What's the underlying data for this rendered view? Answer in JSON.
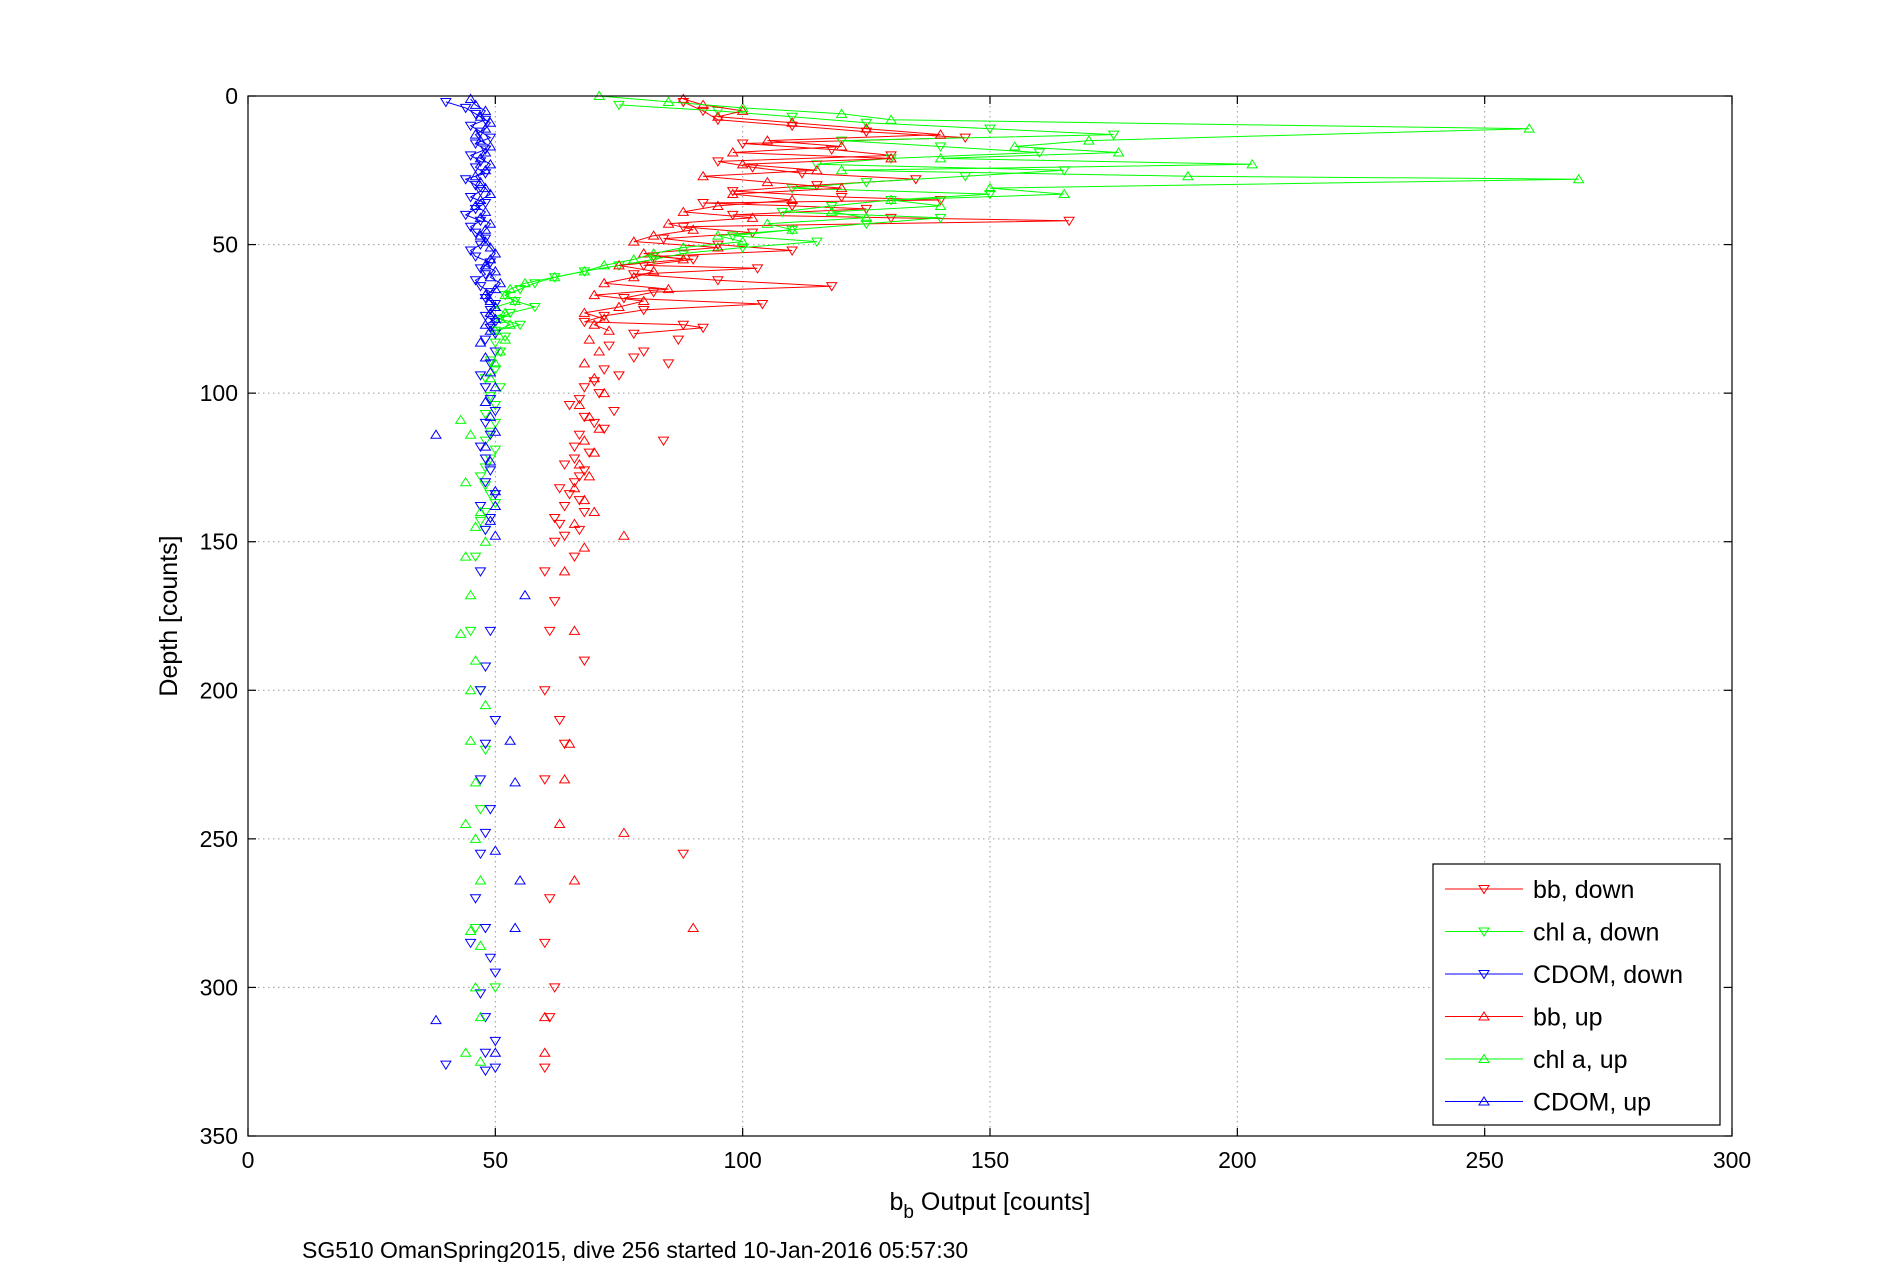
{
  "chart_data": {
    "type": "scatter",
    "title": "",
    "xlabel": "b",
    "xlabel_sub": "b",
    "xlabel_rest": " Output [counts]",
    "ylabel": "Depth [counts]",
    "caption": "SG510 OmanSpring2015, dive 256 started 10-Jan-2016 05:57:30",
    "xlim": [
      0,
      300
    ],
    "ylim": [
      0,
      350
    ],
    "y_reversed": true,
    "grid": true,
    "legend_position": "bottom-right",
    "xticks": [
      "0",
      "50",
      "100",
      "150",
      "200",
      "250",
      "300"
    ],
    "yticks": [
      "0",
      "50",
      "100",
      "150",
      "200",
      "250",
      "300",
      "350"
    ],
    "colors": {
      "red": "#ff0000",
      "green": "#00ff00",
      "blue": "#0000ff"
    },
    "series": [
      {
        "name": "bb, down",
        "color": "#ff0000",
        "marker": "triangle-down",
        "x": [
          88,
          92,
          95,
          110,
          125,
          145,
          100,
          118,
          130,
          95,
          102,
          112,
          135,
          115,
          98,
          120,
          140,
          92,
          110,
          125,
          98,
          130,
          166,
          88,
          102,
          84,
          95,
          110,
          82,
          90,
          80,
          103,
          78,
          95,
          118,
          82,
          76,
          104,
          80,
          72,
          68,
          88,
          92,
          78,
          87,
          73,
          80,
          78,
          85,
          72,
          75,
          70,
          68,
          71,
          67,
          65,
          74,
          68,
          70,
          72,
          67,
          84,
          66,
          69,
          66,
          64,
          68,
          67,
          66,
          63,
          65,
          67,
          64,
          68,
          62,
          63,
          67,
          64,
          62,
          66,
          60,
          62,
          61,
          68,
          60,
          63,
          64,
          60,
          88,
          61,
          60,
          62,
          61,
          60
        ],
        "y": [
          2,
          5,
          8,
          10,
          12,
          14,
          16,
          18,
          20,
          22,
          24,
          26,
          28,
          30,
          32,
          34,
          35,
          36,
          37,
          38,
          40,
          41,
          42,
          44,
          46,
          48,
          50,
          52,
          54,
          55,
          57,
          58,
          60,
          62,
          64,
          66,
          68,
          70,
          72,
          74,
          76,
          77,
          78,
          80,
          82,
          84,
          86,
          88,
          90,
          92,
          94,
          96,
          98,
          100,
          102,
          104,
          106,
          108,
          110,
          112,
          114,
          116,
          118,
          120,
          122,
          124,
          126,
          128,
          130,
          132,
          134,
          136,
          138,
          140,
          142,
          144,
          146,
          148,
          150,
          155,
          160,
          170,
          180,
          190,
          200,
          210,
          218,
          230,
          255,
          270,
          285,
          300,
          310,
          327
        ]
      },
      {
        "name": "chl a, down",
        "color": "#00ff00",
        "marker": "triangle-down",
        "x": [
          75,
          95,
          110,
          125,
          150,
          175,
          120,
          140,
          160,
          130,
          115,
          165,
          145,
          125,
          110,
          150,
          130,
          118,
          108,
          140,
          125,
          110,
          98,
          115,
          100,
          88,
          82,
          75,
          68,
          62,
          58,
          55,
          52,
          54,
          58,
          53,
          51,
          55,
          50,
          52,
          50,
          51,
          49,
          50,
          48,
          51,
          49,
          50,
          48,
          50,
          49,
          48,
          50,
          49,
          48,
          47,
          48,
          49,
          50,
          48,
          47,
          48,
          46,
          45,
          47,
          48,
          47,
          46,
          50
        ],
        "y": [
          3,
          5,
          7,
          9,
          11,
          13,
          15,
          17,
          19,
          21,
          23,
          25,
          27,
          29,
          31,
          33,
          35,
          37,
          39,
          41,
          43,
          45,
          47,
          49,
          51,
          53,
          55,
          57,
          59,
          61,
          63,
          65,
          67,
          69,
          71,
          73,
          75,
          77,
          79,
          81,
          83,
          86,
          89,
          92,
          95,
          98,
          101,
          104,
          107,
          110,
          113,
          116,
          119,
          122,
          125,
          128,
          131,
          134,
          137,
          140,
          143,
          146,
          155,
          180,
          200,
          220,
          240,
          280,
          300
        ]
      },
      {
        "name": "CDOM, down",
        "color": "#0000ff",
        "marker": "triangle-down",
        "x": [
          40,
          44,
          46,
          48,
          45,
          47,
          49,
          46,
          48,
          45,
          47,
          46,
          48,
          44,
          46,
          47,
          45,
          48,
          46,
          44,
          47,
          45,
          46,
          48,
          47,
          45,
          46,
          49,
          47,
          48,
          46,
          47,
          49,
          48,
          50,
          49,
          48,
          50,
          49,
          50,
          48,
          50,
          49,
          47,
          48,
          49,
          50,
          48,
          49,
          47,
          48,
          49,
          48,
          50,
          47,
          49,
          48,
          47,
          49,
          48,
          47,
          50,
          48,
          47,
          49,
          48,
          47,
          46,
          48,
          45,
          49,
          50,
          47,
          48,
          50,
          48,
          40,
          50,
          48
        ],
        "y": [
          2,
          4,
          6,
          8,
          10,
          12,
          14,
          16,
          18,
          20,
          22,
          24,
          26,
          28,
          30,
          32,
          34,
          36,
          38,
          40,
          42,
          44,
          46,
          48,
          50,
          52,
          54,
          56,
          58,
          60,
          62,
          64,
          66,
          68,
          70,
          72,
          74,
          76,
          78,
          80,
          82,
          86,
          90,
          94,
          98,
          102,
          106,
          110,
          114,
          118,
          122,
          126,
          130,
          134,
          138,
          142,
          146,
          160,
          180,
          192,
          200,
          210,
          218,
          230,
          240,
          248,
          255,
          270,
          280,
          285,
          290,
          295,
          302,
          310,
          318,
          322,
          326,
          327,
          328
        ]
      },
      {
        "name": "bb, up",
        "color": "#ff0000",
        "marker": "triangle-up",
        "x": [
          88,
          92,
          100,
          95,
          110,
          125,
          140,
          105,
          120,
          98,
          130,
          100,
          115,
          92,
          105,
          120,
          98,
          110,
          95,
          88,
          102,
          85,
          90,
          82,
          78,
          95,
          80,
          88,
          75,
          82,
          78,
          72,
          85,
          70,
          80,
          75,
          68,
          72,
          70,
          73,
          69,
          71,
          68,
          70,
          72,
          67,
          69,
          71,
          68,
          70,
          67,
          69,
          66,
          68,
          70,
          66,
          76,
          68,
          64,
          66,
          65,
          64,
          63,
          76,
          66,
          90,
          60,
          60
        ],
        "y": [
          1,
          3,
          5,
          7,
          9,
          11,
          13,
          15,
          17,
          19,
          21,
          23,
          25,
          27,
          29,
          31,
          33,
          35,
          37,
          39,
          41,
          43,
          45,
          47,
          49,
          51,
          53,
          55,
          57,
          59,
          61,
          63,
          65,
          67,
          69,
          71,
          73,
          75,
          77,
          79,
          82,
          86,
          90,
          95,
          100,
          104,
          108,
          112,
          116,
          120,
          124,
          128,
          132,
          136,
          140,
          144,
          148,
          152,
          160,
          180,
          218,
          230,
          245,
          248,
          264,
          280,
          310,
          322
        ]
      },
      {
        "name": "chl a, up",
        "color": "#00ff00",
        "marker": "triangle-up",
        "x": [
          71,
          85,
          100,
          120,
          130,
          259,
          170,
          155,
          176,
          140,
          203,
          120,
          190,
          269,
          150,
          165,
          130,
          140,
          118,
          125,
          105,
          110,
          95,
          100,
          88,
          82,
          78,
          72,
          68,
          62,
          56,
          53,
          52,
          54,
          50,
          52,
          51,
          53,
          50,
          52,
          51,
          50,
          49,
          43,
          45,
          44,
          47,
          46,
          48,
          44,
          45,
          43,
          46,
          45,
          48,
          45,
          46,
          44,
          46,
          47,
          45,
          47,
          46,
          47,
          44,
          47
        ],
        "y": [
          0,
          2,
          4,
          6,
          8,
          11,
          15,
          17,
          19,
          21,
          23,
          25,
          27,
          28,
          31,
          33,
          35,
          37,
          39,
          41,
          43,
          45,
          47,
          49,
          51,
          53,
          55,
          57,
          59,
          61,
          63,
          65,
          67,
          69,
          71,
          73,
          75,
          77,
          79,
          82,
          86,
          90,
          95,
          109,
          114,
          130,
          140,
          145,
          150,
          155,
          168,
          181,
          190,
          200,
          205,
          217,
          231,
          245,
          250,
          264,
          281,
          286,
          300,
          310,
          322,
          325
        ]
      },
      {
        "name": "CDOM, up",
        "color": "#0000ff",
        "marker": "triangle-up",
        "x": [
          45,
          46,
          48,
          47,
          49,
          48,
          46,
          47,
          49,
          48,
          47,
          49,
          48,
          46,
          47,
          48,
          49,
          47,
          46,
          48,
          47,
          49,
          48,
          47,
          48,
          49,
          50,
          49,
          48,
          50,
          49,
          51,
          50,
          48,
          49,
          50,
          49,
          50,
          48,
          49,
          47,
          48,
          49,
          50,
          48,
          49,
          50,
          48,
          49,
          50,
          50,
          49,
          50,
          38,
          56,
          53,
          54,
          50,
          55,
          54,
          50,
          38
        ],
        "y": [
          1,
          3,
          5,
          7,
          9,
          11,
          13,
          15,
          17,
          19,
          21,
          23,
          25,
          27,
          29,
          31,
          33,
          35,
          37,
          39,
          41,
          43,
          45,
          47,
          49,
          51,
          53,
          55,
          57,
          59,
          61,
          63,
          65,
          67,
          69,
          71,
          73,
          75,
          77,
          79,
          83,
          88,
          93,
          98,
          103,
          108,
          113,
          118,
          123,
          133,
          138,
          143,
          148,
          114,
          168,
          217,
          231,
          254,
          264,
          280,
          322,
          311
        ]
      }
    ]
  }
}
